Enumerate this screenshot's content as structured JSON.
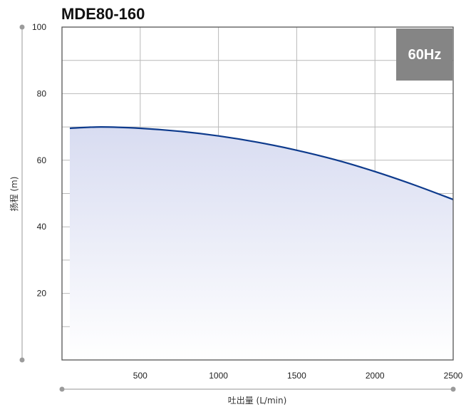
{
  "chart_data": {
    "type": "line",
    "title": "MDE80-160",
    "badge": "60Hz",
    "xlabel": "吐出量 (L/min)",
    "ylabel": "扬程 (m)",
    "xlim": [
      0,
      2500
    ],
    "ylim": [
      0,
      100
    ],
    "x_ticks": [
      500,
      1000,
      1500,
      2000,
      2500
    ],
    "y_ticks": [
      20,
      40,
      60,
      80,
      100
    ],
    "grid": true,
    "series": [
      {
        "x": [
          50,
          250,
          500,
          750,
          1000,
          1250,
          1500,
          1750,
          2000,
          2250,
          2500
        ],
        "values": [
          69.6,
          70.0,
          69.6,
          68.7,
          67.3,
          65.4,
          63.0,
          60.1,
          56.6,
          52.6,
          48.2
        ]
      }
    ],
    "colors": {
      "line": "#0d3a8c",
      "fill": "#dde1f3",
      "badge": "#858585",
      "grid": "#b9b9b9"
    }
  }
}
